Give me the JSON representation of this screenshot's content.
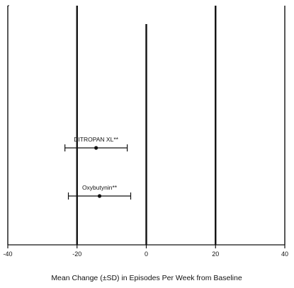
{
  "chart_data": {
    "type": "scatter",
    "subtype": "forest-plot-horizontal-errorbars",
    "xlabel": "Mean Change (±SD) in Episodes Per Week from Baseline",
    "xlim": [
      -40,
      40
    ],
    "xticks": [
      -40,
      -20,
      0,
      20,
      40
    ],
    "xtick_labels": [
      "-40",
      "-20",
      "0",
      "20",
      "40"
    ],
    "vertical_lines_at": [
      -40,
      -20,
      0,
      20,
      40
    ],
    "grid": false,
    "legend": "none",
    "series": [
      {
        "name": "DITROPAN XL**",
        "mean": -14.5,
        "sd_low": -23.5,
        "sd_high": -5.5
      },
      {
        "name": "Oxybutynin**",
        "mean": -13.5,
        "sd_low": -22.5,
        "sd_high": -4.5
      }
    ],
    "colors": {
      "ink": "#111111",
      "background": "#ffffff"
    }
  }
}
